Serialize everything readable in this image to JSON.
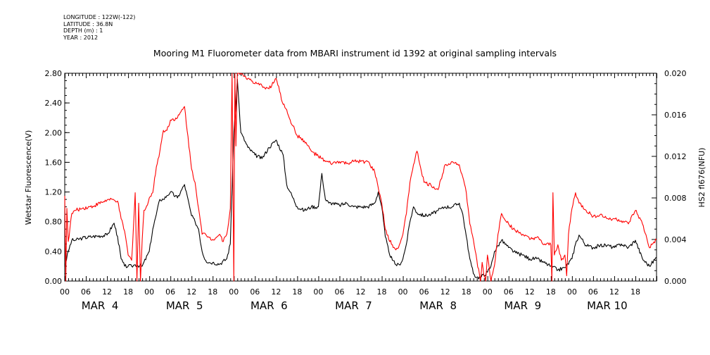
{
  "meta": {
    "longitude": "LONGITUDE : 122W(-122)",
    "latitude": "LATITUDE : 36.8N",
    "depth": "DEPTH (m) : 1",
    "year": "YEAR : 2012"
  },
  "colors": {
    "left_series": "#000000",
    "right_series": "#ff0000",
    "axis": "#000000"
  },
  "chart_data": {
    "type": "line",
    "title": "Mooring M1 Fluorometer data from MBARI instrument id 1392 at original sampling intervals",
    "ylabel": "Wetstar Fluorescence(V)",
    "y2label": "HS2 fl676(NFU)",
    "xlim_hours": [
      0,
      168
    ],
    "ylim": [
      0.0,
      2.8
    ],
    "y2lim": [
      0.0,
      0.02
    ],
    "yticks": [
      "0.00",
      "0.40",
      "0.80",
      "1.20",
      "1.60",
      "2.00",
      "2.40",
      "2.80"
    ],
    "y2ticks": [
      "0.000",
      "0.004",
      "0.008",
      "0.012",
      "0.016",
      "0.020"
    ],
    "hour_ticks": [
      "00",
      "06",
      "12",
      "18",
      "00",
      "06",
      "12",
      "18",
      "00",
      "06",
      "12",
      "18",
      "00",
      "06",
      "12",
      "18",
      "00",
      "06",
      "12",
      "18",
      "00",
      "06",
      "12",
      "18",
      "00",
      "06",
      "12",
      "18"
    ],
    "day_labels": [
      "MAR  4",
      "MAR  5",
      "MAR  6",
      "MAR  7",
      "MAR  8",
      "MAR  9",
      "MAR 10"
    ],
    "series": [
      {
        "name": "Wetstar Fluorescence(V)",
        "axis": "left",
        "x": [
          0,
          1,
          2,
          3,
          5,
          8,
          12,
          14,
          15,
          16,
          17,
          18,
          19,
          20,
          22,
          24,
          25,
          26,
          27,
          28,
          29,
          30,
          32,
          34,
          36,
          37,
          38,
          39,
          40,
          41,
          42,
          44,
          46,
          47,
          48,
          48.5,
          49,
          50,
          52,
          54,
          56,
          58,
          60,
          62,
          63,
          64,
          66,
          68,
          70,
          72,
          73,
          74,
          75,
          76,
          78,
          80,
          82,
          84,
          86,
          88,
          89,
          90,
          91,
          92,
          93,
          94,
          95,
          96,
          97,
          98,
          99,
          100,
          102,
          104,
          106,
          108,
          110,
          112,
          113,
          114,
          115,
          116,
          117,
          118,
          120,
          121,
          122,
          124,
          126,
          128,
          130,
          132,
          134,
          136,
          138,
          140,
          142,
          144,
          145,
          146,
          148,
          150,
          152,
          154,
          156,
          158,
          160,
          162,
          164,
          166,
          168
        ],
        "values": [
          0.2,
          0.4,
          0.55,
          0.55,
          0.58,
          0.6,
          0.62,
          0.78,
          0.6,
          0.3,
          0.2,
          0.2,
          0.2,
          0.22,
          0.2,
          0.4,
          0.7,
          0.9,
          1.1,
          1.1,
          1.15,
          1.2,
          1.12,
          1.3,
          0.88,
          0.8,
          0.7,
          0.4,
          0.28,
          0.25,
          0.25,
          0.23,
          0.3,
          0.5,
          2.0,
          2.3,
          2.72,
          2.0,
          1.8,
          1.7,
          1.65,
          1.8,
          1.9,
          1.7,
          1.3,
          1.2,
          1.0,
          0.95,
          1.0,
          1.0,
          1.45,
          1.1,
          1.05,
          1.05,
          1.02,
          1.05,
          1.0,
          1.0,
          1.0,
          1.05,
          1.2,
          1.0,
          0.6,
          0.4,
          0.28,
          0.22,
          0.22,
          0.3,
          0.5,
          0.8,
          1.0,
          0.92,
          0.88,
          0.9,
          0.95,
          1.0,
          1.0,
          1.05,
          0.9,
          0.6,
          0.3,
          0.1,
          0.05,
          0.05,
          0.12,
          0.2,
          0.4,
          0.55,
          0.45,
          0.38,
          0.35,
          0.3,
          0.3,
          0.25,
          0.2,
          0.15,
          0.18,
          0.3,
          0.5,
          0.62,
          0.48,
          0.45,
          0.48,
          0.48,
          0.45,
          0.5,
          0.45,
          0.55,
          0.3,
          0.2,
          0.32
        ]
      },
      {
        "name": "HS2 fl676(NFU)",
        "axis": "right",
        "x": [
          0,
          0.3,
          0.6,
          1,
          2,
          3,
          5,
          8,
          12,
          14,
          15,
          16,
          17,
          18,
          19,
          20,
          20.5,
          21,
          21.5,
          22,
          22.5,
          23,
          24,
          25,
          26,
          27,
          28,
          29,
          30,
          32,
          34,
          36,
          37,
          38,
          39,
          40,
          41,
          42,
          44,
          45,
          46,
          47,
          47.5,
          48,
          48.3,
          48.6,
          49,
          50,
          52,
          54,
          56,
          58,
          60,
          62,
          63,
          64,
          66,
          68,
          70,
          72,
          74,
          76,
          78,
          80,
          82,
          84,
          86,
          88,
          89,
          90,
          91,
          92,
          93,
          94,
          95,
          96,
          97,
          98,
          99,
          100,
          102,
          104,
          106,
          108,
          110,
          112,
          113,
          114,
          115,
          116,
          117,
          118,
          118.5,
          119,
          119.5,
          120,
          121,
          122,
          123,
          124,
          126,
          128,
          130,
          132,
          134,
          136,
          138,
          138.3,
          138.6,
          139,
          140,
          141,
          142,
          142.5,
          143,
          144,
          145,
          146,
          148,
          150,
          152,
          154,
          156,
          158,
          160,
          162,
          164,
          166,
          168
        ],
        "values": [
          0.0082,
          0.0,
          0.007,
          0.0038,
          0.0065,
          0.0068,
          0.007,
          0.0072,
          0.0078,
          0.0078,
          0.0077,
          0.006,
          0.0048,
          0.0025,
          0.002,
          0.0085,
          0.0,
          0.0075,
          0.0,
          0.004,
          0.0068,
          0.007,
          0.008,
          0.0085,
          0.011,
          0.0125,
          0.0145,
          0.0145,
          0.0155,
          0.0157,
          0.0168,
          0.0108,
          0.0095,
          0.007,
          0.0045,
          0.0045,
          0.0042,
          0.004,
          0.0045,
          0.0038,
          0.0045,
          0.007,
          0.02,
          0.0,
          0.02,
          0.013,
          0.02,
          0.02,
          0.0195,
          0.019,
          0.0188,
          0.0185,
          0.0195,
          0.017,
          0.0165,
          0.0155,
          0.014,
          0.0135,
          0.0125,
          0.012,
          0.0115,
          0.0113,
          0.0115,
          0.0113,
          0.0115,
          0.0115,
          0.0115,
          0.0105,
          0.009,
          0.0075,
          0.005,
          0.004,
          0.0035,
          0.003,
          0.0035,
          0.0045,
          0.0065,
          0.0095,
          0.0112,
          0.0125,
          0.0095,
          0.0092,
          0.0088,
          0.0112,
          0.0115,
          0.0112,
          0.01,
          0.0085,
          0.0055,
          0.004,
          0.002,
          0.0,
          0.0018,
          0.0005,
          0.0,
          0.0025,
          0.0,
          0.0015,
          0.0045,
          0.0065,
          0.0055,
          0.0048,
          0.0045,
          0.004,
          0.0042,
          0.0035,
          0.0035,
          0.0,
          0.0085,
          0.0025,
          0.0035,
          0.002,
          0.0025,
          0.0005,
          0.0045,
          0.007,
          0.0085,
          0.0075,
          0.0068,
          0.0062,
          0.0064,
          0.006,
          0.006,
          0.0058,
          0.0055,
          0.0068,
          0.0055,
          0.0032,
          0.004
        ]
      }
    ]
  }
}
